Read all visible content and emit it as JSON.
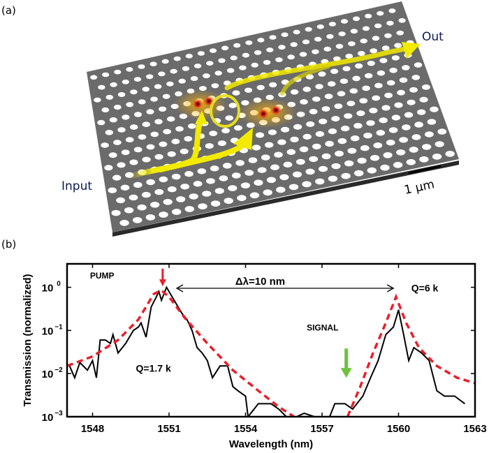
{
  "panel_a": {
    "label": "(a)",
    "input_label": "Input",
    "output_label": "Out",
    "scale_bar_label": "1 µm",
    "colors": {
      "slab": "#6b6b6b",
      "holes": "#ffffff",
      "light_path": "#f2ea00",
      "mode_field": "#d61a1a",
      "labels": "#0d1a55"
    }
  },
  "panel_b": {
    "label": "(b)",
    "annotations": {
      "pump": "PUMP",
      "signal": "SIGNAL",
      "delta": "Δλ=10 nm",
      "q_pump": "Q=1.7 k",
      "q_signal": "Q=6 k"
    },
    "colors": {
      "measured": "#000000",
      "fit": "#e8202a",
      "pump_arrow": "#e8202a",
      "signal_arrow": "#6cc33a"
    }
  },
  "chart_data": {
    "type": "line",
    "xlabel": "Wavelength (nm)",
    "ylabel": "Transmission (normalized)",
    "xlim": [
      1547,
      1563
    ],
    "ylim": [
      0.001,
      3.5
    ],
    "yscale": "log",
    "xticks": [
      1548,
      1551,
      1554,
      1557,
      1560,
      1563
    ],
    "yticks": [
      {
        "value": 1,
        "label": "10",
        "exp": "0"
      },
      {
        "value": 0.1,
        "label": "10",
        "exp": "−1"
      },
      {
        "value": 0.01,
        "label": "10",
        "exp": "−2"
      },
      {
        "value": 0.001,
        "label": "10",
        "exp": "−3"
      }
    ],
    "grid": false,
    "series": [
      {
        "style": "solid-black",
        "points": [
          [
            1547.1,
            0.015
          ],
          [
            1547.3,
            0.008
          ],
          [
            1547.5,
            0.018
          ],
          [
            1547.8,
            0.012
          ],
          [
            1548,
            0.02
          ],
          [
            1548.15,
            0.008
          ],
          [
            1548.3,
            0.06
          ],
          [
            1548.5,
            0.06
          ],
          [
            1548.7,
            0.05
          ],
          [
            1548.8,
            0.08
          ],
          [
            1549,
            0.03
          ],
          [
            1549.3,
            0.05
          ],
          [
            1549.6,
            0.1
          ],
          [
            1549.8,
            0.12
          ],
          [
            1549.9,
            0.15
          ],
          [
            1550.1,
            0.07
          ],
          [
            1550.3,
            0.35
          ],
          [
            1550.5,
            0.6
          ],
          [
            1550.6,
            0.8
          ],
          [
            1550.7,
            0.5
          ],
          [
            1550.9,
            1.0
          ],
          [
            1551.2,
            0.5
          ],
          [
            1551.5,
            0.25
          ],
          [
            1551.7,
            0.18
          ],
          [
            1551.9,
            0.1
          ],
          [
            1552.1,
            0.04
          ],
          [
            1552.3,
            0.03
          ],
          [
            1552.5,
            0.02
          ],
          [
            1552.7,
            0.008
          ],
          [
            1553,
            0.015
          ],
          [
            1553.3,
            0.015
          ],
          [
            1553.5,
            0.005
          ],
          [
            1553.7,
            0.004
          ],
          [
            1554,
            0.003
          ],
          [
            1554.1,
            0.001
          ],
          [
            1554.5,
            0.002
          ],
          [
            1555,
            0.002
          ],
          [
            1555.3,
            0.0015
          ],
          [
            1555.6,
            0.001
          ],
          [
            1556,
            0.001
          ],
          [
            1556.3,
            0.0012
          ],
          [
            1556.7,
            0.001
          ],
          [
            1557.3,
            0.001
          ],
          [
            1557.5,
            0.002
          ],
          [
            1557.9,
            0.002
          ],
          [
            1558.2,
            0.0015
          ],
          [
            1558.6,
            0.003
          ],
          [
            1558.9,
            0.008
          ],
          [
            1559.2,
            0.02
          ],
          [
            1559.5,
            0.08
          ],
          [
            1559.8,
            0.12
          ],
          [
            1560,
            0.3
          ],
          [
            1560.2,
            0.08
          ],
          [
            1560.4,
            0.02
          ],
          [
            1560.6,
            0.04
          ],
          [
            1560.9,
            0.03
          ],
          [
            1561.2,
            0.02
          ],
          [
            1561.5,
            0.004
          ],
          [
            1561.8,
            0.003
          ],
          [
            1562.2,
            0.003
          ],
          [
            1562.6,
            0.002
          ]
        ]
      },
      {
        "style": "dashed-red",
        "points": [
          [
            1547,
            0.015
          ],
          [
            1548,
            0.025
          ],
          [
            1549,
            0.06
          ],
          [
            1549.8,
            0.18
          ],
          [
            1550.4,
            0.7
          ],
          [
            1550.7,
            0.85
          ],
          [
            1551,
            0.6
          ],
          [
            1551.6,
            0.2
          ],
          [
            1552.5,
            0.05
          ],
          [
            1553.5,
            0.012
          ],
          [
            1554.5,
            0.004
          ],
          [
            1555.3,
            0.0017
          ],
          [
            1555.9,
            0.001
          ]
        ]
      },
      {
        "style": "dashed-red",
        "points": [
          [
            1558,
            0.001
          ],
          [
            1558.5,
            0.005
          ],
          [
            1559,
            0.03
          ],
          [
            1559.5,
            0.15
          ],
          [
            1559.9,
            0.6
          ],
          [
            1560.3,
            0.15
          ],
          [
            1560.8,
            0.04
          ],
          [
            1561.5,
            0.015
          ],
          [
            1562.3,
            0.008
          ],
          [
            1563,
            0.006
          ]
        ]
      }
    ]
  }
}
